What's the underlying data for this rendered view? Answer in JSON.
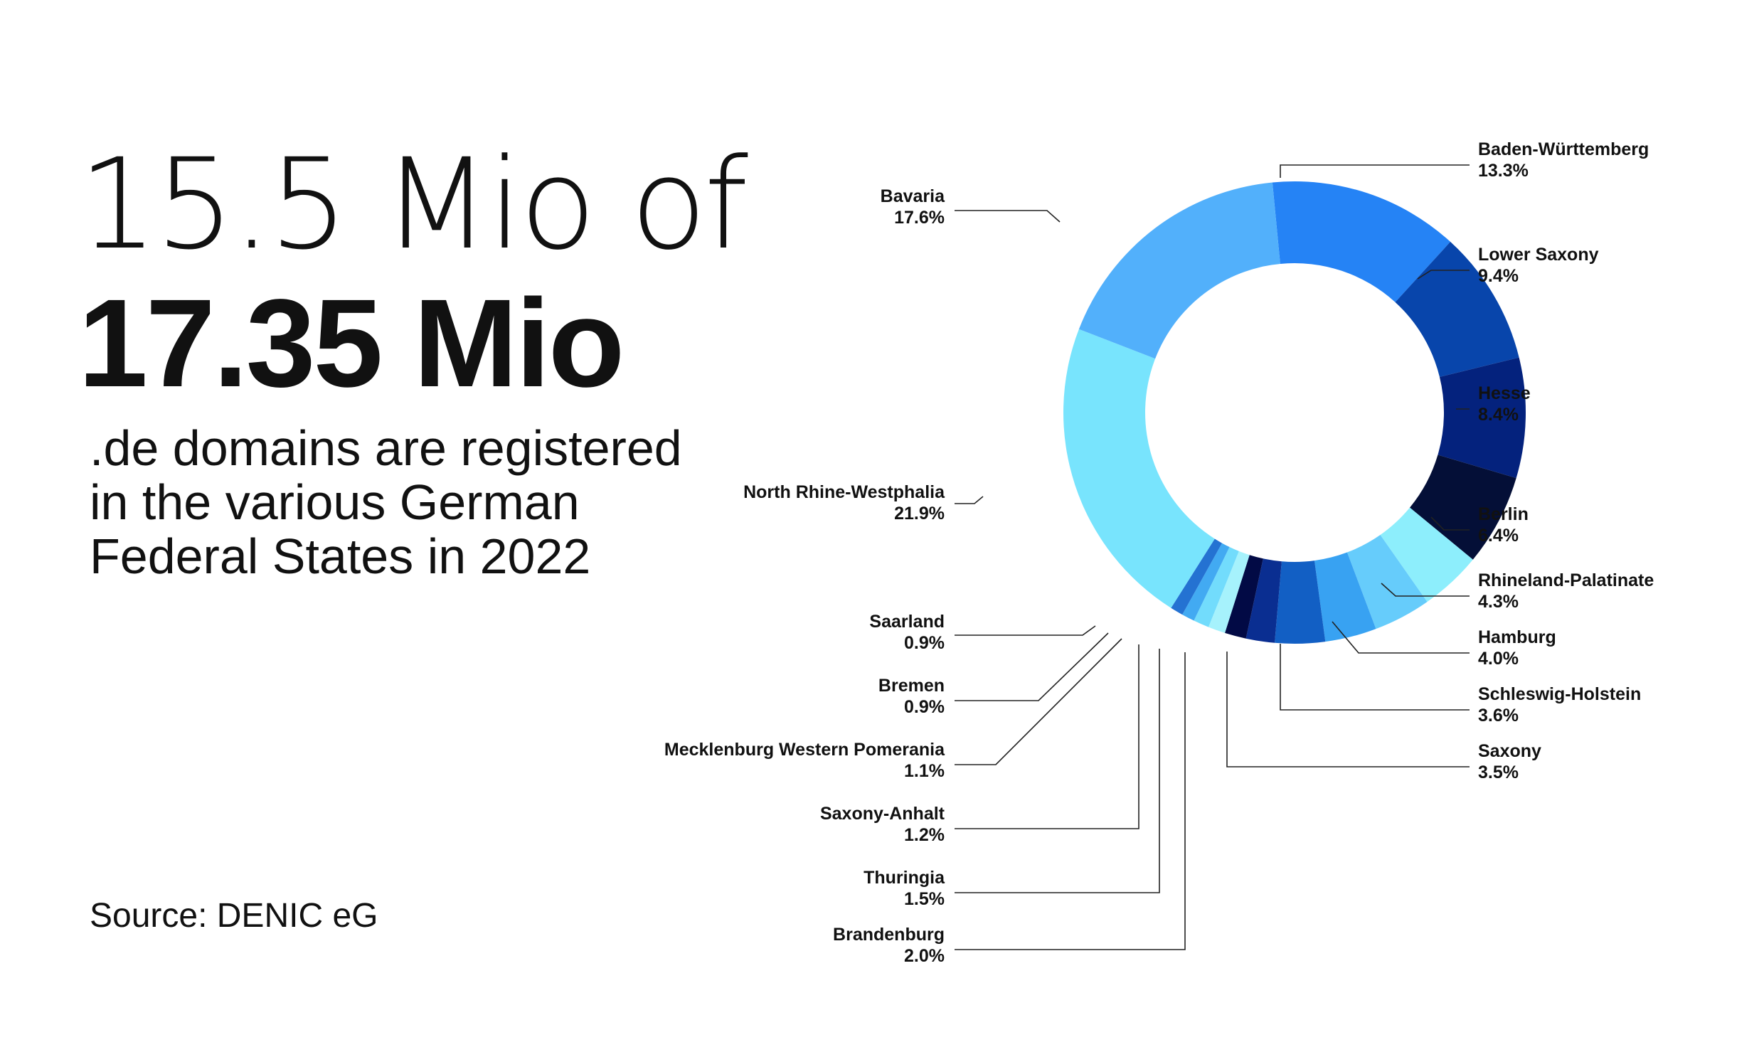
{
  "headline": {
    "line1": "15.5 Mio of",
    "line2": "17.35 Mio",
    "subtitle_lines": [
      ".de domains are registered",
      "in the various German",
      "Federal States in 2022"
    ]
  },
  "source": "Source: DENIC eG",
  "chart_data": {
    "type": "pie",
    "donut": true,
    "unit": "%",
    "slices": [
      {
        "label": "Baden-Württemberg",
        "value": 13.3,
        "value_label": "13.3%",
        "color": "#2583f5"
      },
      {
        "label": "Lower Saxony",
        "value": 9.4,
        "value_label": "9.4%",
        "color": "#0845ab"
      },
      {
        "label": "Hesse",
        "value": 8.4,
        "value_label": "8.4%",
        "color": "#04227d"
      },
      {
        "label": "Berlin",
        "value": 6.4,
        "value_label": "6.4%",
        "color": "#040f37"
      },
      {
        "label": "Rhineland-Palatinate",
        "value": 4.3,
        "value_label": "4.3%",
        "color": "#8deefc"
      },
      {
        "label": "Hamburg",
        "value": 4.0,
        "value_label": "4.0%",
        "color": "#66ccfb"
      },
      {
        "label": "Schleswig-Holstein",
        "value": 3.6,
        "value_label": "3.6%",
        "color": "#38a2f2"
      },
      {
        "label": "Saxony",
        "value": 3.5,
        "value_label": "3.5%",
        "color": "#125fc4"
      },
      {
        "label": "Brandenburg",
        "value": 2.0,
        "value_label": "2.0%",
        "color": "#0a2e91"
      },
      {
        "label": "Thuringia",
        "value": 1.5,
        "value_label": "1.5%",
        "color": "#020a45"
      },
      {
        "label": "Saxony-Anhalt",
        "value": 1.2,
        "value_label": "1.2%",
        "color": "#a6f2fc"
      },
      {
        "label": "Mecklenburg Western Pomerania",
        "value": 1.1,
        "value_label": "1.1%",
        "color": "#72dcfc"
      },
      {
        "label": "Bremen",
        "value": 0.9,
        "value_label": "0.9%",
        "color": "#42aaf2"
      },
      {
        "label": "Saarland",
        "value": 0.9,
        "value_label": "0.9%",
        "color": "#2472d2"
      },
      {
        "label": "North Rhine-Westphalia",
        "value": 21.9,
        "value_label": "21.9%",
        "color": "#78e4fd"
      },
      {
        "label": "Bavaria",
        "value": 17.6,
        "value_label": "17.6%",
        "color": "#52b0fb"
      }
    ]
  }
}
